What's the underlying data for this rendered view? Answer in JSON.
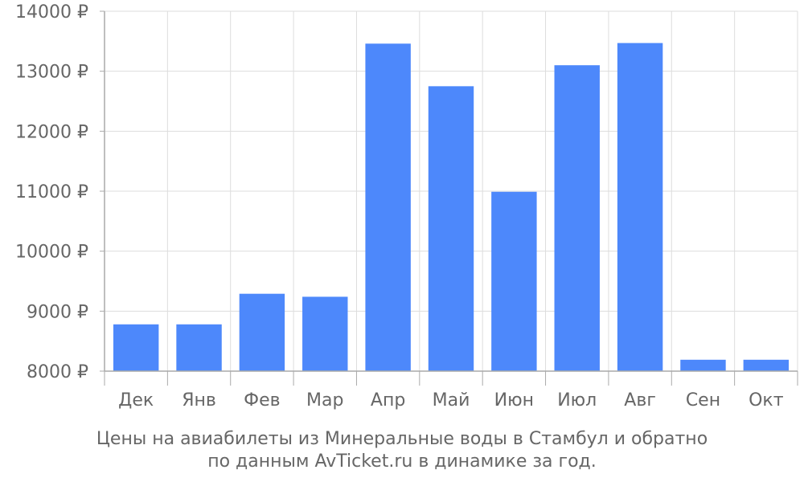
{
  "chart_data": {
    "type": "bar",
    "categories": [
      "Дек",
      "Янв",
      "Фев",
      "Мар",
      "Апр",
      "Май",
      "Июн",
      "Июл",
      "Авг",
      "Сен",
      "Окт"
    ],
    "values": [
      8780,
      8780,
      9290,
      9240,
      13460,
      12750,
      10990,
      13100,
      13470,
      8190,
      8190
    ],
    "ylim": [
      8000,
      14000
    ],
    "yticks": [
      {
        "value": 8000,
        "label": "8000 ₽"
      },
      {
        "value": 9000,
        "label": "9000 ₽"
      },
      {
        "value": 10000,
        "label": "10000 ₽"
      },
      {
        "value": 11000,
        "label": "11000 ₽"
      },
      {
        "value": 12000,
        "label": "12000 ₽"
      },
      {
        "value": 13000,
        "label": "13000 ₽"
      },
      {
        "value": 14000,
        "label": "14000 ₽"
      }
    ],
    "title": "",
    "xlabel": "",
    "ylabel": "",
    "grid": true,
    "bar_color": "#4d88fb",
    "grid_color": "#dddddd",
    "axis_color": "#aaaaaa",
    "text_color": "#666666"
  },
  "caption": {
    "line1": "Цены на авиабилеты из Минеральные воды в Стамбул и обратно",
    "line2": "по данным AvTicket.ru в динамике за год."
  }
}
